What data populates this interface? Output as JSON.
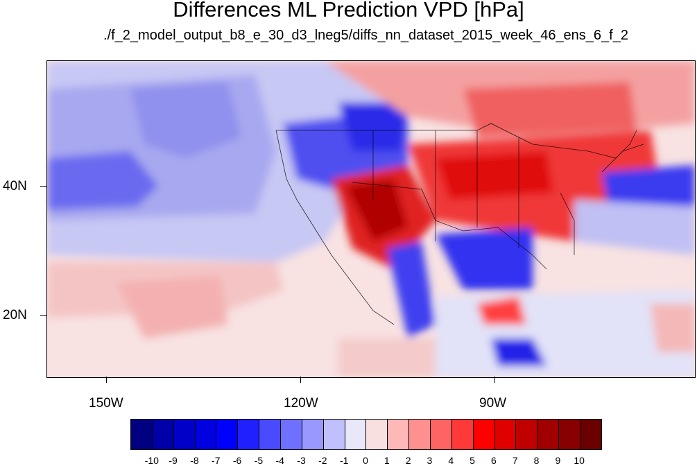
{
  "title": "Differences ML Prediction VPD [hPa]",
  "subtitle": "./f_2_model_output_b8_e_30_d3_lneg5/diffs_nn_dataset_2015_week_46_ens_6_f_2",
  "map": {
    "region": "North America / Eastern Pacific",
    "lon_labels": [
      "150W",
      "120W",
      "90W"
    ],
    "lat_labels": [
      "40N",
      "20N"
    ],
    "features": [
      "coastlines",
      "US state boundaries",
      "national borders"
    ]
  },
  "colorbar": {
    "labels": [
      "-10",
      "-9",
      "-8",
      "-7",
      "-6",
      "-5",
      "-4",
      "-3",
      "-2",
      "-1",
      "0",
      "1",
      "2",
      "3",
      "4",
      "5",
      "6",
      "7",
      "8",
      "9",
      "10"
    ],
    "colors": [
      "#000080",
      "#0000a8",
      "#0000c8",
      "#0000e0",
      "#0000ff",
      "#2020ff",
      "#4a4aff",
      "#7070ff",
      "#9898ff",
      "#c0c0ff",
      "#e8e8f8",
      "#f8e0e0",
      "#ffb8b8",
      "#ff9090",
      "#ff6464",
      "#ff3838",
      "#ff0000",
      "#e00000",
      "#c00000",
      "#a00000",
      "#880000",
      "#6a0000"
    ]
  }
}
